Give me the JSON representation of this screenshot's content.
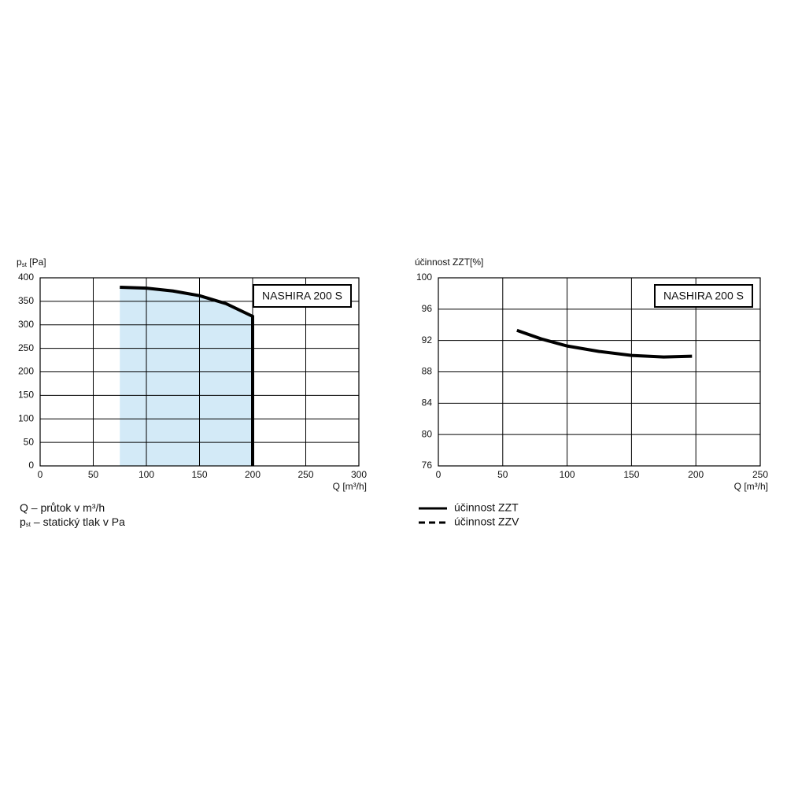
{
  "chart_data": [
    {
      "type": "line",
      "y_label": [
        "p",
        "st",
        " [Pa]"
      ],
      "x_label": "Q [m³/h]",
      "annotation": "NASHIRA 200 S",
      "xlim": [
        0,
        300
      ],
      "xticks": [
        0,
        50,
        100,
        150,
        200,
        250,
        300
      ],
      "ylim": [
        0,
        400
      ],
      "yticks": [
        0,
        50,
        100,
        150,
        200,
        250,
        300,
        350,
        400
      ],
      "grid": true,
      "area_color": "#d3eaf7",
      "x": [
        75,
        100,
        125,
        150,
        175,
        200,
        200
      ],
      "series": [
        {
          "color": "#000000",
          "values": [
            380,
            378,
            372,
            362,
            345,
            318,
            0
          ]
        }
      ],
      "notes": [
        [
          "Q – průtok v m³/h"
        ],
        [
          "p",
          "st",
          " – statický tlak v Pa"
        ]
      ]
    },
    {
      "type": "line",
      "y_label": [
        "účinnost ZZT[%]"
      ],
      "x_label": "Q [m³/h]",
      "annotation": "NASHIRA 200 S",
      "xlim": [
        0,
        250
      ],
      "xticks": [
        0,
        50,
        100,
        150,
        200,
        250
      ],
      "ylim": [
        76,
        100
      ],
      "yticks": [
        76,
        80,
        84,
        88,
        92,
        96,
        100
      ],
      "grid": true,
      "x": [
        61,
        80,
        100,
        125,
        150,
        175,
        197
      ],
      "series": [
        {
          "name": "účinnost ZZT",
          "color": "#000000",
          "dashed": false,
          "values": [
            93.3,
            92.2,
            91.3,
            90.6,
            90.1,
            89.9,
            90.0
          ]
        },
        {
          "name": "účinnost ZZV",
          "color": "#000000",
          "dashed": true
        }
      ]
    }
  ]
}
